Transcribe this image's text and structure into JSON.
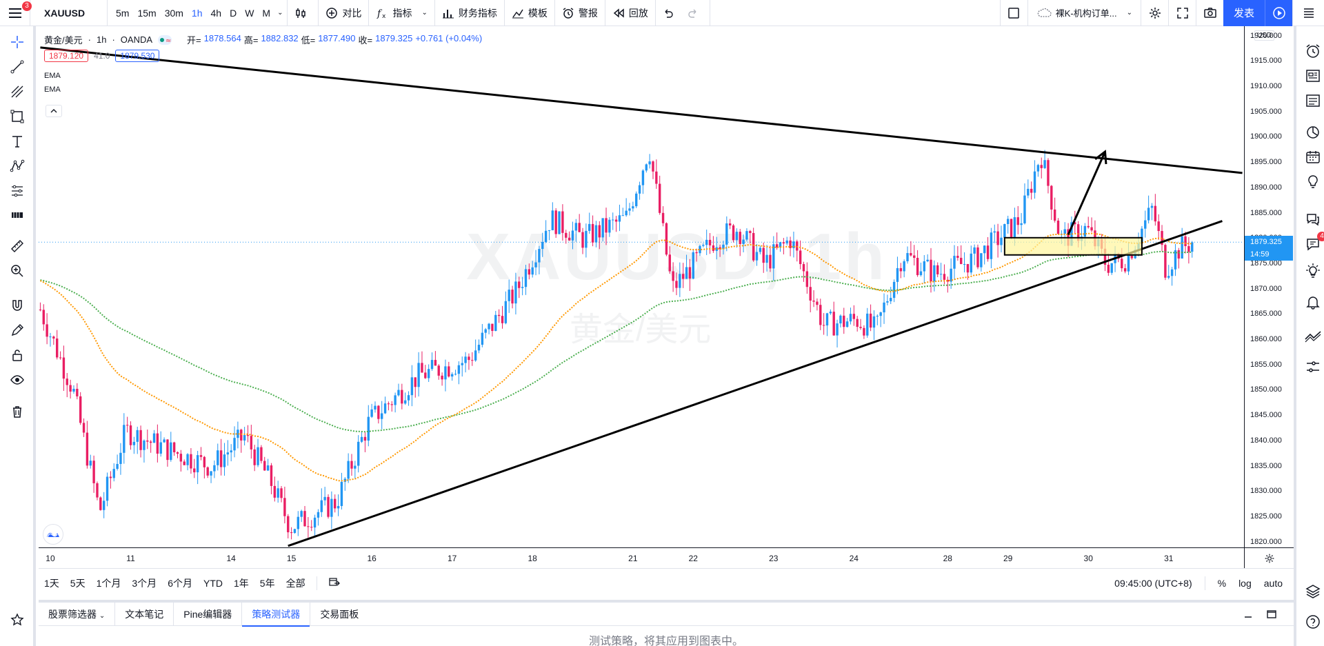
{
  "toolbar": {
    "menu_badge": "3",
    "symbol": "XAUUSD",
    "intervals": [
      "5m",
      "15m",
      "30m",
      "1h",
      "4h",
      "D",
      "W",
      "M"
    ],
    "active_interval": "1h",
    "compare_label": "对比",
    "indicators_label": "指标",
    "financials_label": "财务指标",
    "templates_label": "模板",
    "alert_label": "警报",
    "replay_label": "回放",
    "layout_name": "裸K-机构订单...",
    "publish_label": "发表"
  },
  "legend": {
    "symbol_desc": "黄金/美元",
    "interval": "1h",
    "exchange": "OANDA",
    "open_label": "开=",
    "open": "1878.564",
    "high_label": "高=",
    "high": "1882.832",
    "low_label": "低=",
    "low": "1877.490",
    "close_label": "收=",
    "close": "1879.325",
    "change": "+0.761 (+0.04%)",
    "sell_price": "1879.120",
    "spread": "41.0",
    "buy_price": "1879.530",
    "indicators": [
      "EMA",
      "EMA"
    ]
  },
  "watermark": {
    "symbol": "XAUUSD, 1h",
    "description": "黄金/美元"
  },
  "price_axis": {
    "currency": "USD",
    "ticks": [
      "1920.000",
      "1915.000",
      "1910.000",
      "1905.000",
      "1900.000",
      "1895.000",
      "1890.000",
      "1885.000",
      "1880.000",
      "1875.000",
      "1870.000",
      "1865.000",
      "1860.000",
      "1855.000",
      "1850.000",
      "1845.000",
      "1840.000",
      "1835.000",
      "1830.000",
      "1825.000",
      "1820.000"
    ],
    "tick_values": [
      1920,
      1915,
      1910,
      1905,
      1900,
      1895,
      1890,
      1885,
      1880,
      1875,
      1870,
      1865,
      1860,
      1855,
      1850,
      1845,
      1840,
      1835,
      1830,
      1825,
      1820
    ],
    "last_price": "1879.325",
    "last_value": 1879.325,
    "countdown": "14:59"
  },
  "time_axis": {
    "ticks": [
      "10",
      "11",
      "14",
      "15",
      "16",
      "17",
      "18",
      "21",
      "22",
      "23",
      "24",
      "28",
      "29",
      "30",
      "31"
    ],
    "bar_index": [
      3,
      27,
      57,
      75,
      99,
      123,
      147,
      177,
      195,
      219,
      243,
      271,
      289,
      313,
      337
    ]
  },
  "range_bar": {
    "ranges": [
      "1天",
      "5天",
      "1个月",
      "3个月",
      "6个月",
      "YTD",
      "1年",
      "5年",
      "全部"
    ],
    "clock": "09:45:00 (UTC+8)",
    "percent": "%",
    "log": "log",
    "auto": "auto"
  },
  "bottom_panel": {
    "tabs": [
      "股票筛选器",
      "文本笔记",
      "Pine编辑器",
      "策略测试器",
      "交易面板"
    ],
    "active_tab": "策略测试器",
    "message": "测试策略，将其应用到图表中。"
  },
  "right_bar": {
    "ideas_badge": "4"
  },
  "colors": {
    "up": "#2196f3",
    "down": "#e91e63",
    "ema_fast": "#ff9800",
    "ema_slow": "#4caf50",
    "accent": "#2962ff",
    "zone_fill": "#fff59d"
  },
  "chart_data": {
    "type": "candlestick",
    "ylim": [
      1819,
      1922
    ],
    "bars_visible": 360,
    "candles": [],
    "ema_fast": [],
    "ema_slow": [],
    "drawings": {
      "upper_trendline": {
        "from": [
          0,
          1917.8
        ],
        "to": [
          359,
          1893.0
        ]
      },
      "lower_trendline": {
        "from": [
          74,
          1819.3
        ],
        "to": [
          353,
          1883.5
        ]
      },
      "arrow": {
        "from": [
          307,
          1880.8
        ],
        "to": [
          318,
          1897.2
        ]
      },
      "zone": {
        "bar_from": 288,
        "bar_to": 329,
        "price_top": 1880.2,
        "price_bottom": 1876.8
      }
    }
  }
}
